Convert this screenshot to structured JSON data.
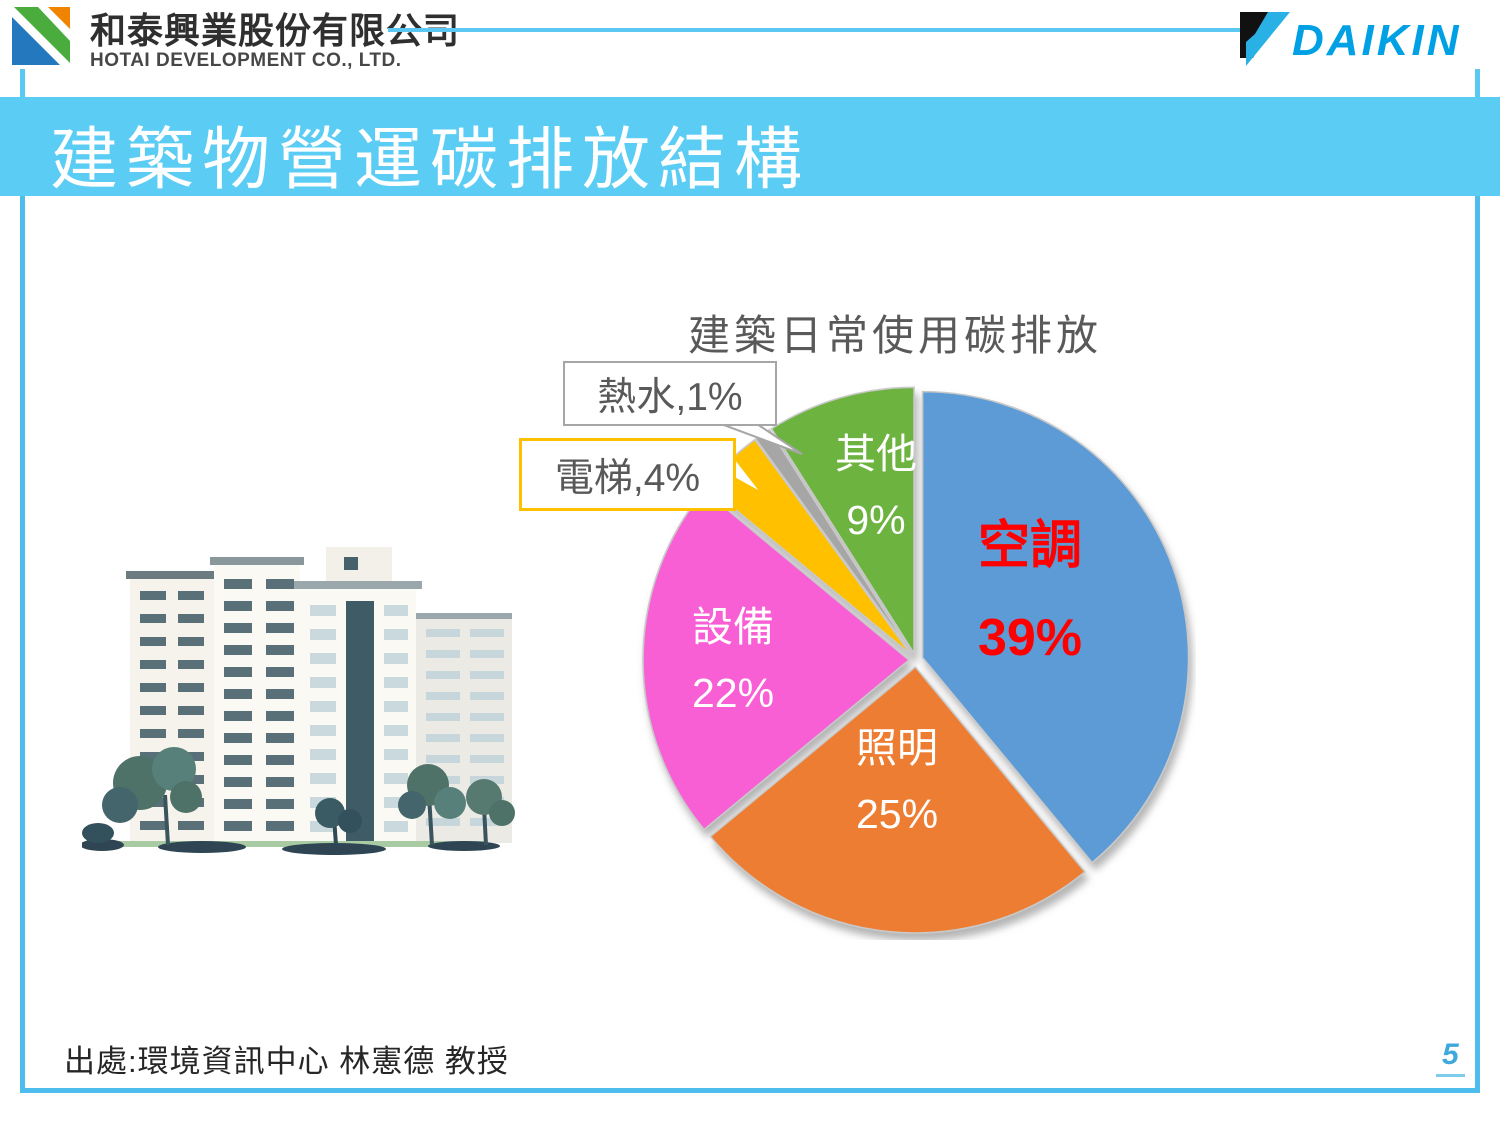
{
  "colors": {
    "banner_bg": "#5BCDF4",
    "frame_border": "#4CBDEC",
    "daikin_blue": "#00A1E4",
    "emphasis_red": "#FF0000",
    "chart_title_gray": "#595959",
    "hotai_green": "#49AC3C",
    "hotai_blue": "#2378BE",
    "hotai_orange": "#F08300"
  },
  "header": {
    "hotai_name_zh": "和泰興業股份有限公司",
    "hotai_name_en": "HOTAI DEVELOPMENT CO., LTD.",
    "daikin_wordmark": "DAIKIN"
  },
  "banner": {
    "title": "建築物營運碳排放結構"
  },
  "chart_data": {
    "type": "pie",
    "title": "建築日常使用碳排放",
    "unit": "%",
    "direction": "clockwise",
    "start_angle_deg": 0,
    "legend_position": "none",
    "slices": [
      {
        "label": "空調",
        "value": 39,
        "pct": "39%",
        "color": "#5B9BD5",
        "label_color": "#FF0000",
        "emphasis": true
      },
      {
        "label": "照明",
        "value": 25,
        "pct": "25%",
        "color": "#ED7D31",
        "label_color": "#FFFFFF"
      },
      {
        "label": "設備",
        "value": 22,
        "pct": "22%",
        "color": "#F95FD5",
        "label_color": "#FFFFFF"
      },
      {
        "label": "電梯",
        "value": 4,
        "pct": "4%",
        "color": "#FFC000",
        "callout_text": "電梯,4%",
        "callout_border": "#FFC000"
      },
      {
        "label": "熱水",
        "value": 1,
        "pct": "1%",
        "color": "#A6A6A6",
        "callout_text": "熱水,1%",
        "callout_border": "#A6A6A6"
      },
      {
        "label": "其他",
        "value": 9,
        "pct": "9%",
        "color": "#6CB33F",
        "label_color": "#FFFFFF"
      }
    ]
  },
  "footer": {
    "source": "出處:環境資訊中心 林憲德 教授",
    "page_number": "5"
  }
}
